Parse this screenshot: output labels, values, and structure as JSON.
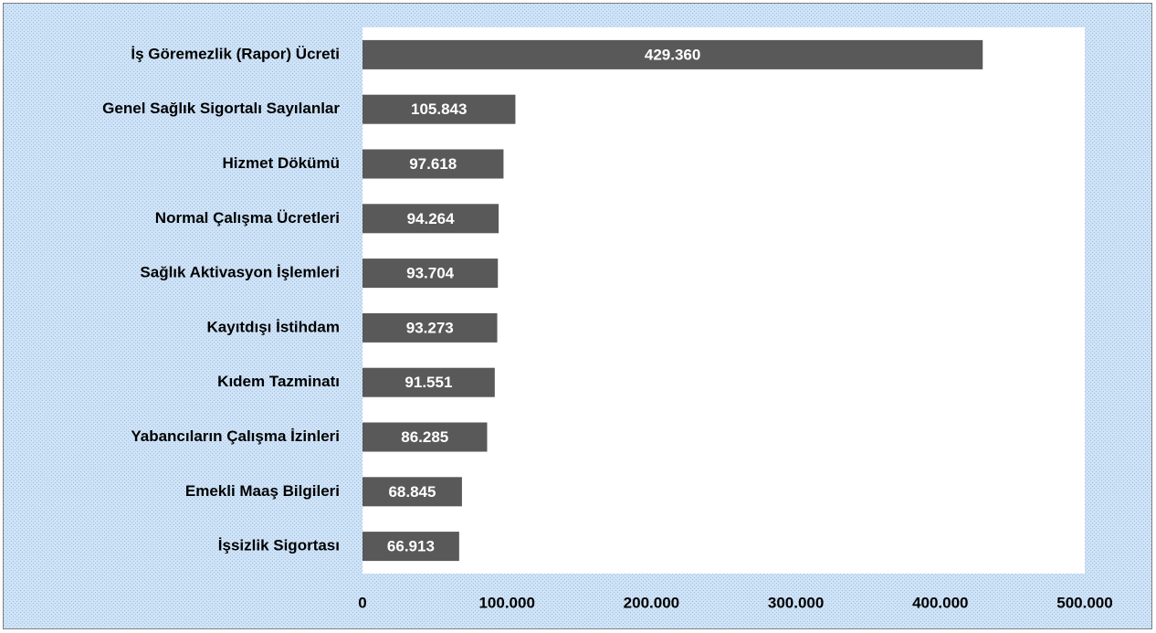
{
  "chart_data": {
    "type": "barh",
    "categories": [
      "İş Göremezlik (Rapor) Ücreti",
      "Genel Sağlık Sigortalı Sayılanlar",
      "Hizmet Dökümü",
      "Normal Çalışma Ücretleri",
      "Sağlık Aktivasyon İşlemleri",
      "Kayıtdışı İstihdam",
      "Kıdem Tazminatı",
      "Yabancıların Çalışma İzinleri",
      "Emekli Maaş Bilgileri",
      "İşsizlik Sigortası"
    ],
    "values": [
      429360,
      105843,
      97618,
      94264,
      93704,
      93273,
      91551,
      86285,
      68845,
      66913
    ],
    "value_labels": [
      "429.360",
      "105.843",
      "97.618",
      "94.264",
      "93.704",
      "93.273",
      "91.551",
      "86.285",
      "68.845",
      "66.913"
    ],
    "color": "#595959",
    "xlim": [
      0,
      500000
    ],
    "xticks": [
      0,
      {
        "value": 100000,
        "label": "100.000"
      },
      {
        "value": 200000,
        "label": "200.000"
      },
      {
        "value": 300000,
        "label": "300.000"
      },
      {
        "value": 400000,
        "label": "400.000"
      },
      {
        "value": 500000,
        "label": "500.000"
      }
    ]
  }
}
